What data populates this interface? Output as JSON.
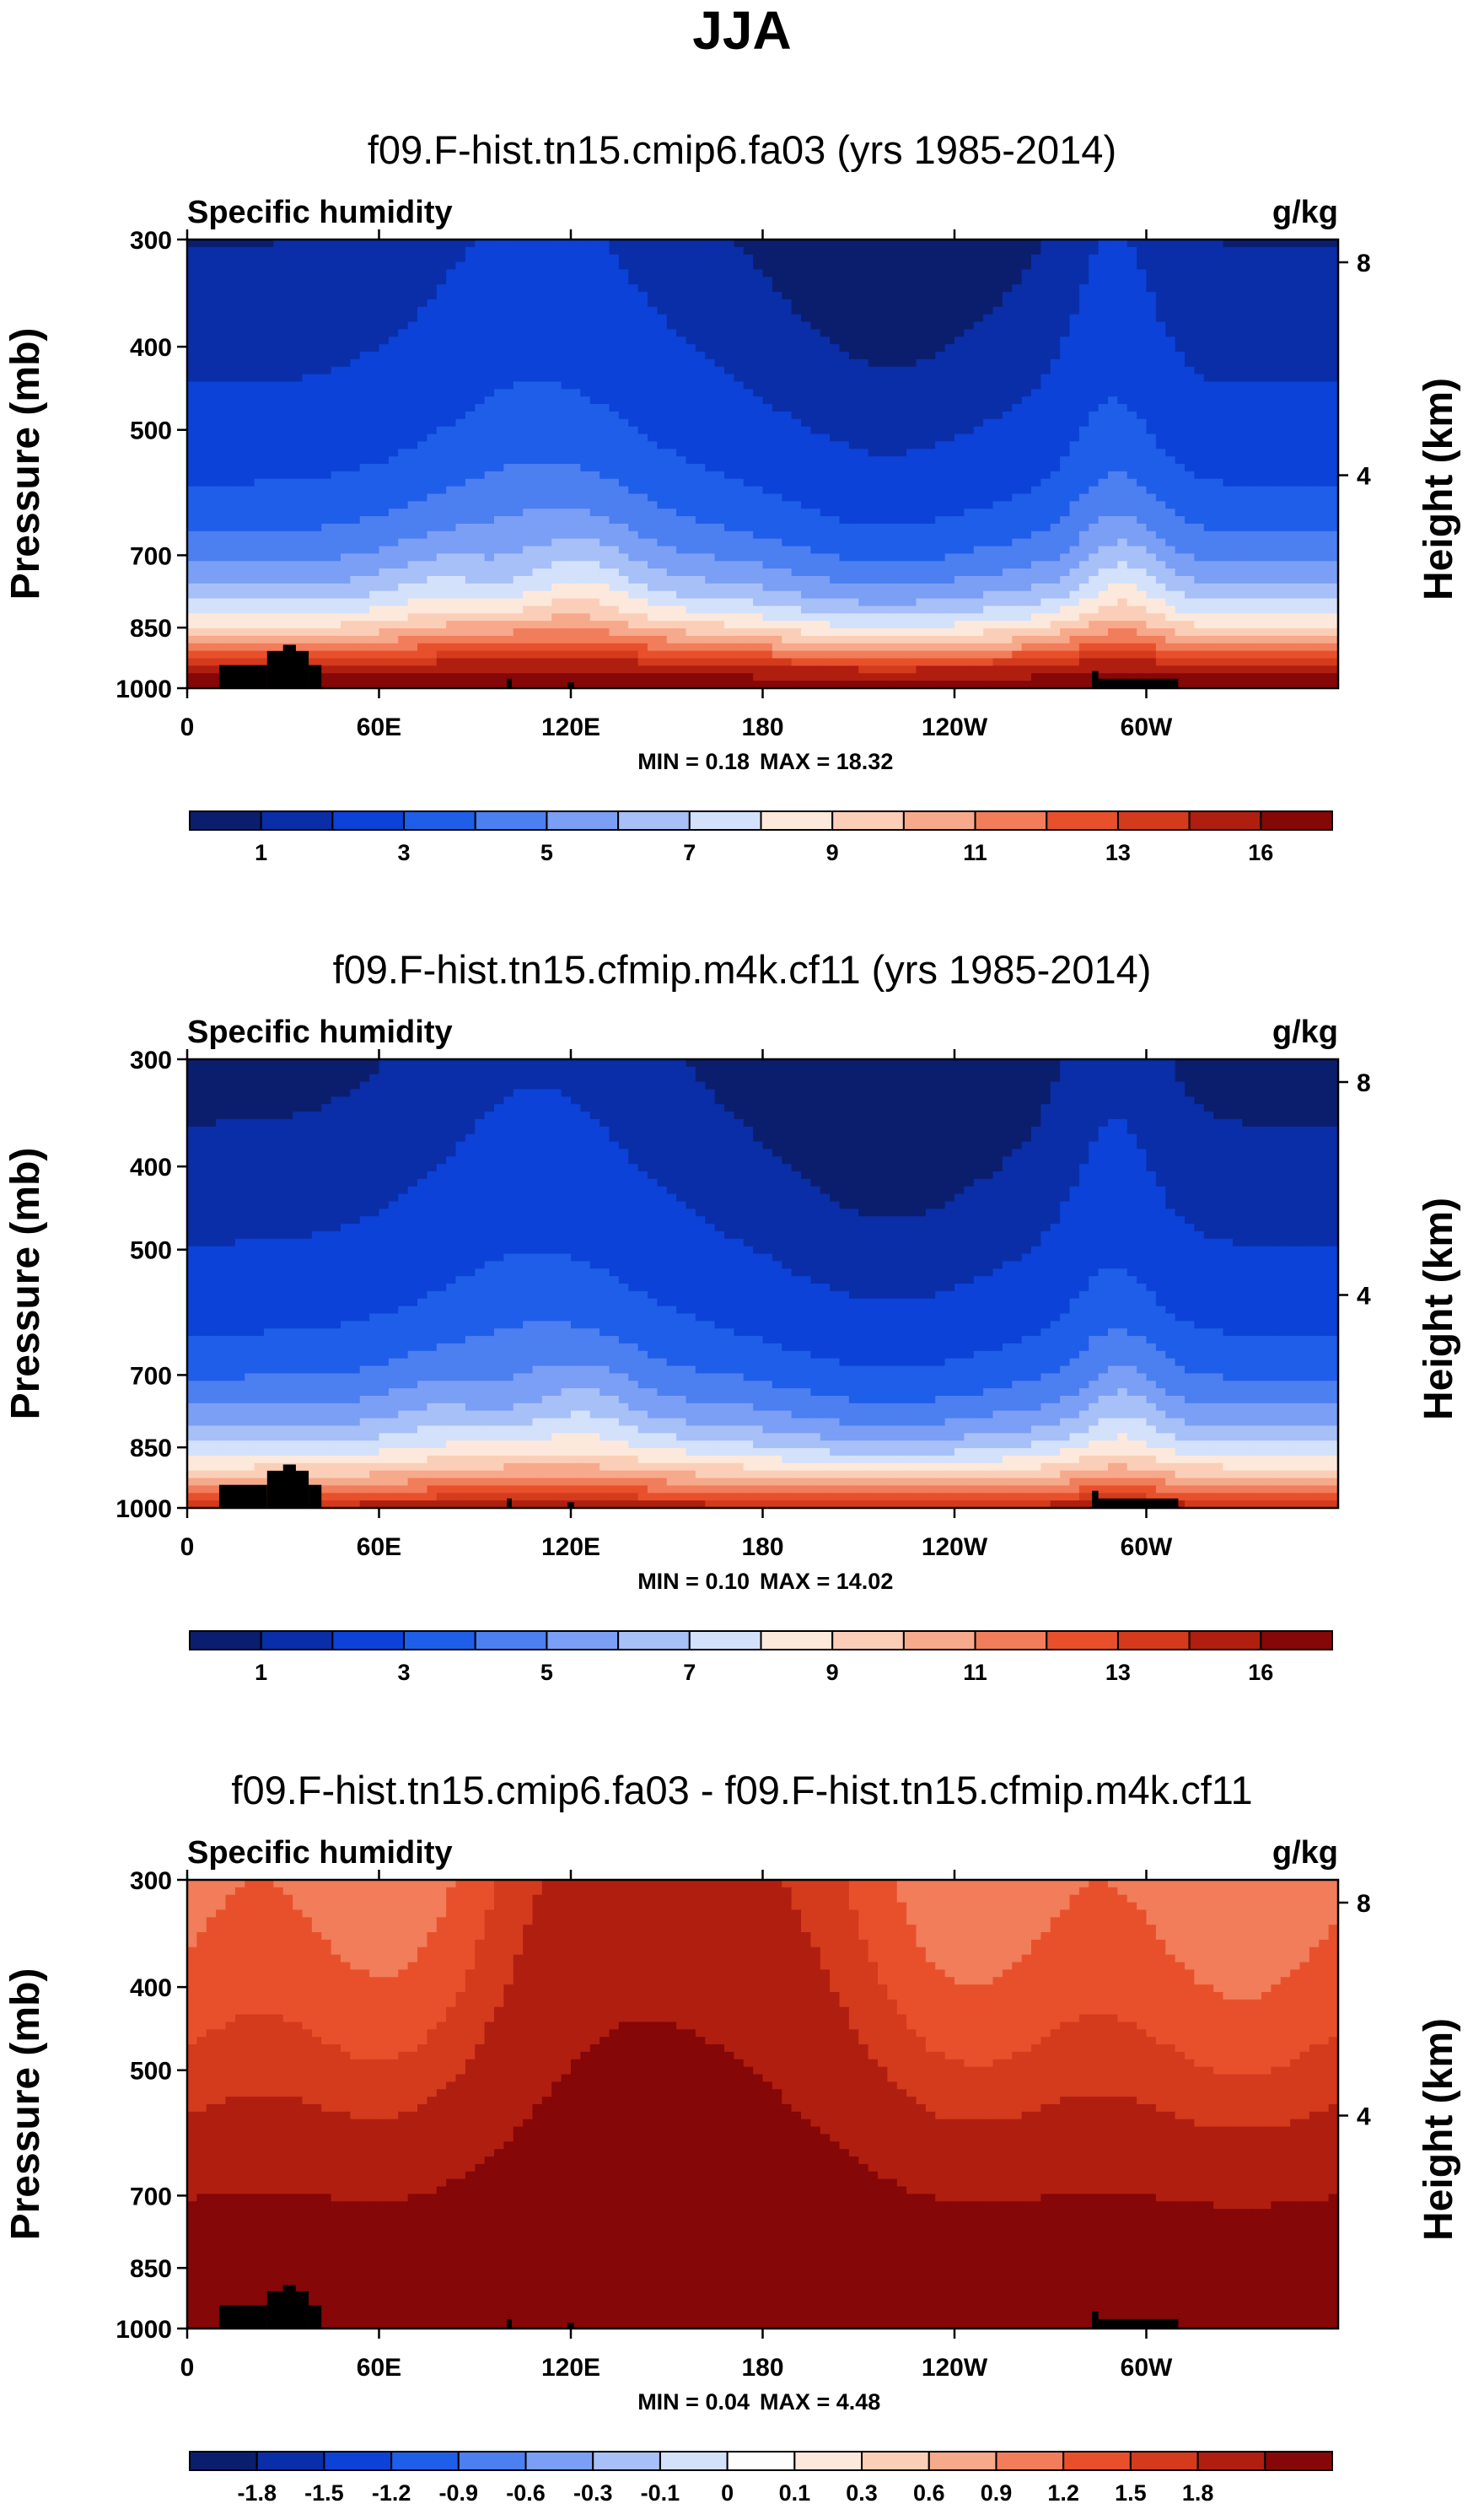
{
  "season_title": "JJA",
  "colors": {
    "seq": [
      "#0b1e6e",
      "#0a2ea8",
      "#0c42d8",
      "#1f5ee8",
      "#4c7ff0",
      "#7b9ff4",
      "#a8c0f8",
      "#d3e1fb",
      "#fde9dc",
      "#fbcfb7",
      "#f7a98b",
      "#f17d5a",
      "#e8502c",
      "#d43a1c",
      "#b01e10",
      "#850707"
    ],
    "div": [
      "#0b1e6e",
      "#0a2ea8",
      "#0c42d8",
      "#1f5ee8",
      "#4c7ff0",
      "#7b9ff4",
      "#a8c0f8",
      "#d3e1fb",
      "#fdfdfd",
      "#fde9dc",
      "#fbcfb7",
      "#f7a98b",
      "#f17d5a",
      "#e8502c",
      "#d43a1c",
      "#b01e10",
      "#850707"
    ],
    "topo": "#000000"
  },
  "chart_data": [
    {
      "type": "contour",
      "title": "f09.F-hist.tn15.cmip6.fa03 (yrs 1985-2014)",
      "variable_label": "Specific humidity",
      "units_label": "g/kg",
      "ylabel": "Pressure (mb)",
      "y2label": "Height (km)",
      "y_ticks": [
        "300",
        "400",
        "500",
        "700",
        "850",
        "1000"
      ],
      "y_tick_values": [
        300,
        400,
        500,
        700,
        850,
        1000
      ],
      "y2_ticks": [
        "8",
        "4"
      ],
      "y2_tick_values": [
        8,
        4
      ],
      "x_ticks": [
        "0",
        "60E",
        "120E",
        "180",
        "120W",
        "60W"
      ],
      "x_tick_values": [
        0,
        60,
        120,
        180,
        240,
        300
      ],
      "xlim": [
        0,
        360
      ],
      "ylim": [
        1000,
        300
      ],
      "min_label": "MIN =   0.18",
      "max_label": "MAX =  18.32",
      "min": 0.18,
      "max": 18.32,
      "colorbar_labels": [
        "1",
        "3",
        "5",
        "7",
        "9",
        "11",
        "13",
        "16"
      ],
      "colorbar_label_boxes": [
        1,
        3,
        5,
        7,
        9,
        11,
        13,
        15
      ],
      "palette": "seq",
      "field": "humid",
      "scale": 1.0,
      "offset": 0
    },
    {
      "type": "contour",
      "title": "f09.F-hist.tn15.cfmip.m4k.cf11 (yrs 1985-2014)",
      "variable_label": "Specific humidity",
      "units_label": "g/kg",
      "ylabel": "Pressure (mb)",
      "y2label": "Height (km)",
      "y_ticks": [
        "300",
        "400",
        "500",
        "700",
        "850",
        "1000"
      ],
      "y_tick_values": [
        300,
        400,
        500,
        700,
        850,
        1000
      ],
      "y2_ticks": [
        "8",
        "4"
      ],
      "y2_tick_values": [
        8,
        4
      ],
      "x_ticks": [
        "0",
        "60E",
        "120E",
        "180",
        "120W",
        "60W"
      ],
      "x_tick_values": [
        0,
        60,
        120,
        180,
        240,
        300
      ],
      "xlim": [
        0,
        360
      ],
      "ylim": [
        1000,
        300
      ],
      "min_label": "MIN =   0.10",
      "max_label": "MAX =  14.02",
      "min": 0.1,
      "max": 14.02,
      "colorbar_labels": [
        "1",
        "3",
        "5",
        "7",
        "9",
        "11",
        "13",
        "16"
      ],
      "colorbar_label_boxes": [
        1,
        3,
        5,
        7,
        9,
        11,
        13,
        15
      ],
      "palette": "seq",
      "field": "humid",
      "scale": 0.78,
      "offset": 0
    },
    {
      "type": "contour",
      "title": "f09.F-hist.tn15.cmip6.fa03 - f09.F-hist.tn15.cfmip.m4k.cf11",
      "variable_label": "Specific humidity",
      "units_label": "g/kg",
      "ylabel": "Pressure (mb)",
      "y2label": "Height (km)",
      "y_ticks": [
        "300",
        "400",
        "500",
        "700",
        "850",
        "1000"
      ],
      "y_tick_values": [
        300,
        400,
        500,
        700,
        850,
        1000
      ],
      "y2_ticks": [
        "8",
        "4"
      ],
      "y2_tick_values": [
        8,
        4
      ],
      "x_ticks": [
        "0",
        "60E",
        "120E",
        "180",
        "120W",
        "60W"
      ],
      "x_tick_values": [
        0,
        60,
        120,
        180,
        240,
        300
      ],
      "xlim": [
        0,
        360
      ],
      "ylim": [
        1000,
        300
      ],
      "min_label": "MIN =   0.04",
      "max_label": "MAX =   4.48",
      "min": 0.04,
      "max": 4.48,
      "colorbar_labels": [
        "-1.8",
        "-1.5",
        "-1.2",
        "-0.9",
        "-0.6",
        "-0.3",
        "-0.1",
        "0",
        "0.1",
        "0.3",
        "0.6",
        "0.9",
        "1.2",
        "1.5",
        "1.8"
      ],
      "colorbar_label_boxes": [
        1,
        2,
        3,
        4,
        5,
        6,
        7,
        8,
        9,
        10,
        11,
        12,
        13,
        14,
        15
      ],
      "palette": "div",
      "field": "diff",
      "scale": 1.0,
      "offset": 0
    }
  ]
}
